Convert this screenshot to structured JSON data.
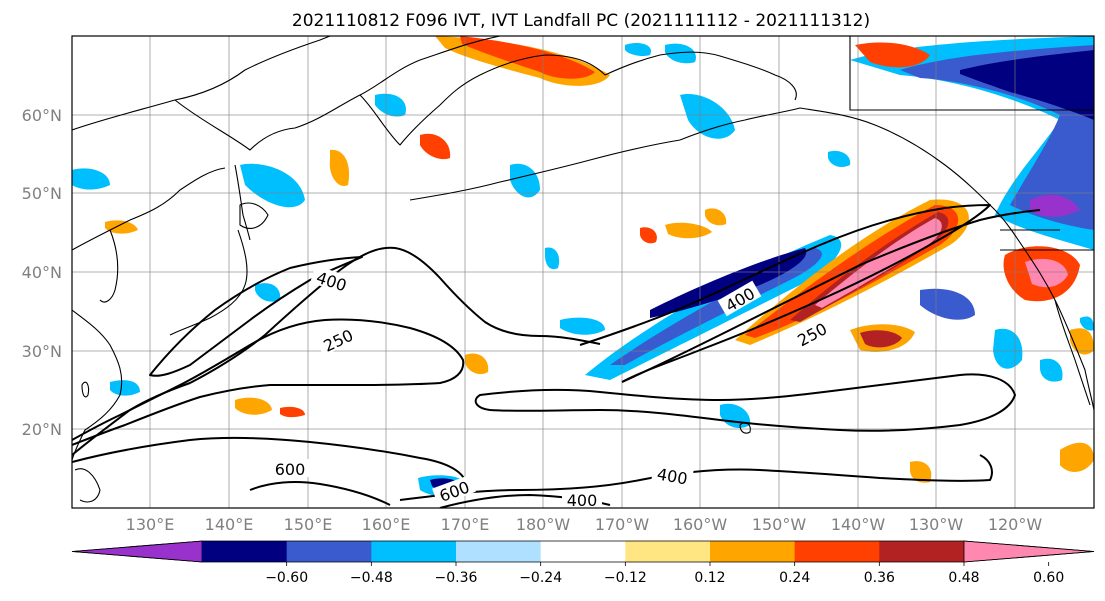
{
  "title": "2021110812 F096 IVT, IVT Landfall PC (2021111112 - 2021111312)",
  "lon_labels": [
    "130°E",
    "140°E",
    "150°E",
    "160°E",
    "170°E",
    "180°W",
    "170°W",
    "160°W",
    "150°W",
    "140°W",
    "130°W",
    "120°W"
  ],
  "lat_labels": [
    "60°N",
    "50°N",
    "40°N",
    "30°N",
    "20°N"
  ],
  "contour_labels": [
    "400",
    "250",
    "600",
    "600",
    "400",
    "400",
    "400",
    "250"
  ],
  "colorbar": {
    "ticks": [
      "−0.60",
      "−0.48",
      "−0.36",
      "−0.24",
      "−0.12",
      "0.12",
      "0.24",
      "0.36",
      "0.48",
      "0.60"
    ],
    "colors": [
      "#9932cc",
      "#000080",
      "#3a5bcd",
      "#00bfff",
      "#b0e0ff",
      "#ffffff",
      "#ffe682",
      "#ffa500",
      "#ff4000",
      "#b22222",
      "#ff88b0"
    ]
  }
}
